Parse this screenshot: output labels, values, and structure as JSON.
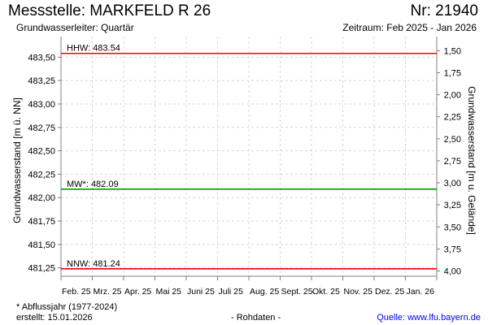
{
  "header": {
    "title": "Messstelle: MARKFELD R 26",
    "number": "Nr: 21940",
    "aquifer": "Grundwasserleiter: Quartär",
    "period": "Zeitraum: Feb 2025 - Jan 2026"
  },
  "footer": {
    "footnote": "* Abflussjahr (1977-2024)",
    "created": "erstellt:  15.01.2026",
    "rawdata": "- Rohdaten -",
    "source": "Quelle: www.lfu.bayern.de"
  },
  "colors": {
    "hhw": "#ff0000",
    "mw": "#00a000",
    "nnw": "#ff0000",
    "grid": "#d8d8d8",
    "link": "#0000ff"
  },
  "chart_data": {
    "type": "line",
    "ylabel": "Grundwasserstand [m ü. NN]",
    "ylabel_right": "Grundwasserstand [m u. Gelände]",
    "ylim": [
      481.16,
      483.72
    ],
    "ylim_right": [
      1.34,
      4.06
    ],
    "yticks": [
      "483,50",
      "483,25",
      "483,00",
      "482,75",
      "482,50",
      "482,25",
      "482,00",
      "481,75",
      "481,50",
      "481,25"
    ],
    "yticks_values": [
      483.5,
      483.25,
      483.0,
      482.75,
      482.5,
      482.25,
      482.0,
      481.75,
      481.5,
      481.25
    ],
    "yticks_right": [
      "1,50",
      "1,75",
      "2,00",
      "2,25",
      "2,50",
      "2,75",
      "3,00",
      "3,25",
      "3,50",
      "3,75",
      "4,00"
    ],
    "yticks_right_values": [
      1.5,
      1.75,
      2.0,
      2.25,
      2.5,
      2.75,
      3.0,
      3.25,
      3.5,
      3.75,
      4.0
    ],
    "xticks": [
      "Feb. 25",
      "Mrz. 25",
      "Apr. 25",
      "Mai 25",
      "Juni 25",
      "Juli 25",
      "Aug. 25",
      "Sept. 25",
      "Okt. 25",
      "Nov. 25",
      "Dez. 25",
      "Jan. 26"
    ],
    "reference_lines": [
      {
        "name": "HHW",
        "label": "HHW: 483.54",
        "value": 483.54,
        "color": "#ff0000"
      },
      {
        "name": "MW",
        "label": "MW*: 482.09",
        "value": 482.09,
        "color": "#00a000"
      },
      {
        "name": "NNW",
        "label": "NNW: 481.24",
        "value": 481.24,
        "color": "#ff0000"
      }
    ],
    "series": [],
    "grid": true
  }
}
